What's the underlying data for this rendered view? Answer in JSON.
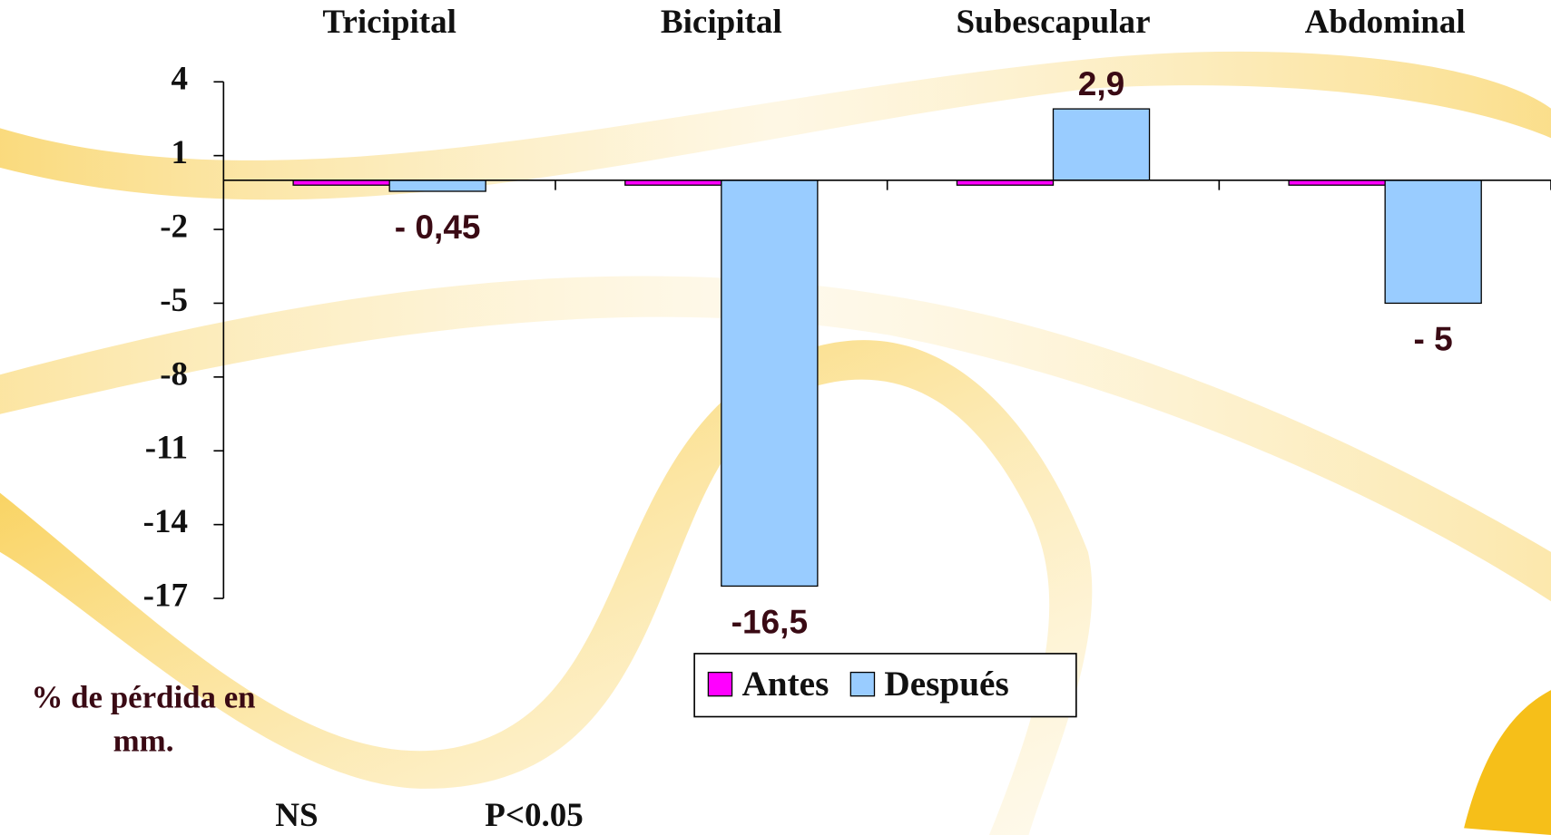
{
  "chart_data": {
    "type": "bar",
    "categories": [
      "Tricipital",
      "Bicipital",
      "Subescapular",
      "Abdominal"
    ],
    "series": [
      {
        "name": "Antes",
        "color": "#ff00ff",
        "values": [
          -0.2,
          -0.2,
          -0.2,
          -0.2
        ]
      },
      {
        "name": "Después",
        "color": "#99ccff",
        "values": [
          -0.45,
          -16.5,
          2.9,
          -5
        ],
        "value_labels": [
          "- 0,45",
          "-16,5",
          "2,9",
          "- 5"
        ]
      }
    ],
    "y_label": "% de pérdida en mm.",
    "annotations": [
      "NS",
      "P<0.05"
    ],
    "ylim": [
      -17,
      4
    ],
    "yticks": [
      4,
      1,
      -2,
      -5,
      -8,
      -11,
      -14,
      -17
    ],
    "grid": false,
    "legend": "bottom"
  }
}
